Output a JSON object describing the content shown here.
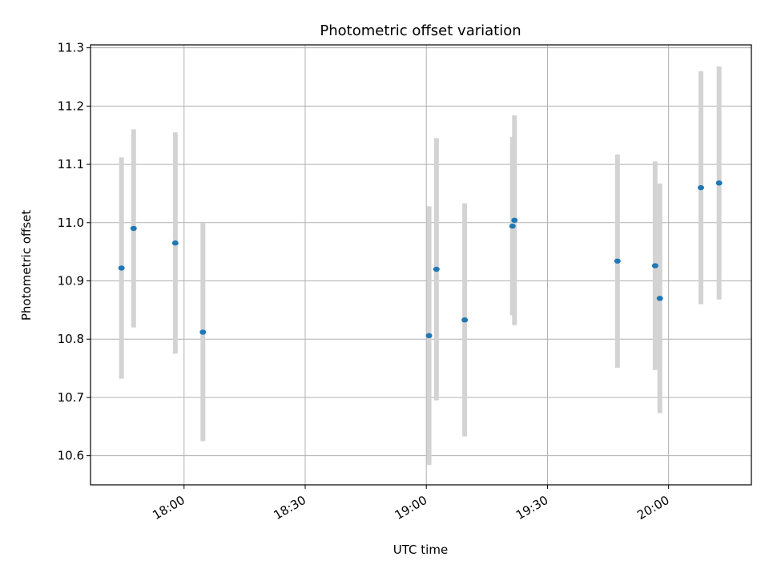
{
  "chart_data": {
    "type": "scatter",
    "title": "Photometric offset variation",
    "xlabel": "UTC time",
    "ylabel": "Photometric offset",
    "x_tick_labels": [
      "18:00",
      "18:30",
      "19:00",
      "19:30",
      "20:00"
    ],
    "x_tick_times": [
      "18:00",
      "18:30",
      "19:00",
      "19:30",
      "20:00"
    ],
    "xlim": [
      "17:36:50",
      "20:20:30"
    ],
    "ylim": [
      10.55,
      11.305
    ],
    "y_ticks": [
      10.6,
      10.7,
      10.8,
      10.9,
      11.0,
      11.1,
      11.2,
      11.3
    ],
    "y_tick_labels": [
      "10.6",
      "10.7",
      "10.8",
      "10.9",
      "11.0",
      "11.1",
      "11.2",
      "11.3"
    ],
    "grid": true,
    "points": [
      {
        "x": "17:44:30",
        "y": 10.922,
        "err": 0.19
      },
      {
        "x": "17:47:30",
        "y": 10.99,
        "err": 0.17
      },
      {
        "x": "17:57:50",
        "y": 10.965,
        "err": 0.19
      },
      {
        "x": "18:04:40",
        "y": 10.812,
        "err": 0.187
      },
      {
        "x": "19:00:40",
        "y": 10.806,
        "err": 0.222
      },
      {
        "x": "19:02:30",
        "y": 10.92,
        "err": 0.225
      },
      {
        "x": "19:09:30",
        "y": 10.833,
        "err": 0.2
      },
      {
        "x": "19:21:20",
        "y": 10.994,
        "err": 0.153
      },
      {
        "x": "19:21:50",
        "y": 11.004,
        "err": 0.18
      },
      {
        "x": "19:47:20",
        "y": 10.934,
        "err": 0.183
      },
      {
        "x": "19:56:40",
        "y": 10.926,
        "err": 0.179
      },
      {
        "x": "19:57:50",
        "y": 10.87,
        "err": 0.197
      },
      {
        "x": "20:08:00",
        "y": 11.06,
        "err": 0.2
      },
      {
        "x": "20:12:30",
        "y": 11.068,
        "err": 0.2
      }
    ],
    "colors": {
      "marker": "#1f77b4",
      "errorbar": "#d3d3d3",
      "grid": "#b0b0b0"
    }
  }
}
